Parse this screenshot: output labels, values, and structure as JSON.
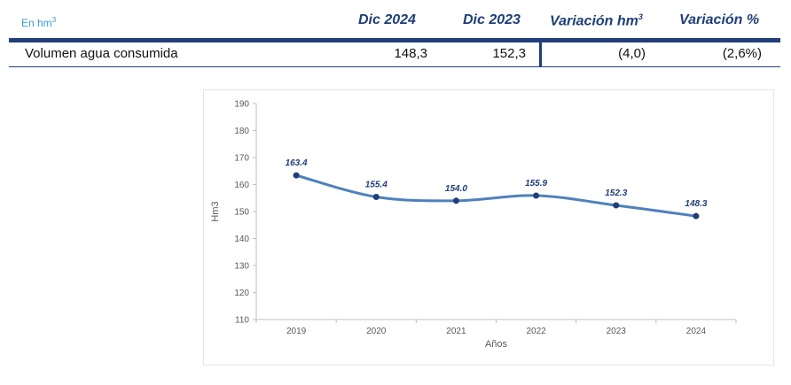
{
  "table": {
    "unit_label": "En hm",
    "unit_sup": "3",
    "col_dic_2024": "Dic 2024",
    "col_dic_2023": "Dic 2023",
    "col_variacion_hm": "Variación  hm",
    "col_variacion_hm_sup": "3",
    "col_variacion_pct": "Variación %",
    "rows": [
      {
        "label": "Volumen agua consumida",
        "dic_2024": "148,3",
        "dic_2023": "152,3",
        "variacion_hm3": "(4,0)",
        "variacion_pct": "(2,6%)"
      }
    ]
  },
  "colors": {
    "accent": "#1f3e7a",
    "line": "#4f81bd",
    "unit_text": "#3a9ad9"
  },
  "chart_data": {
    "type": "line",
    "x": [
      "2019",
      "2020",
      "2021",
      "2022",
      "2023",
      "2024"
    ],
    "series": [
      {
        "values": [
          163.4,
          155.4,
          154.0,
          155.9,
          152.3,
          148.3
        ]
      }
    ],
    "data_labels": [
      "163.4",
      "155.4",
      "154.0",
      "155.9",
      "152.3",
      "148.3"
    ],
    "xlabel": "Años",
    "ylabel": "Hm3",
    "ylim": [
      110,
      190
    ],
    "yticks": [
      "110",
      "120",
      "130",
      "140",
      "150",
      "160",
      "170",
      "180",
      "190"
    ],
    "grid": false,
    "smooth": true
  }
}
